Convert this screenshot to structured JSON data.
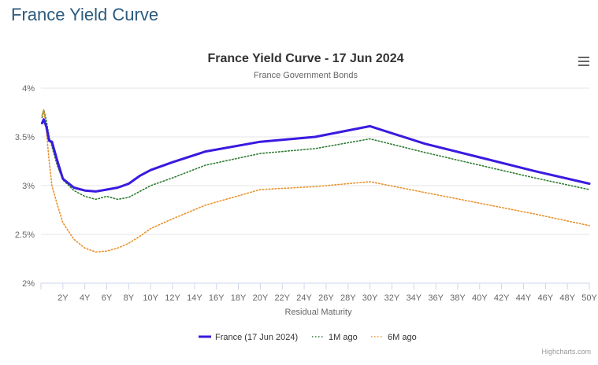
{
  "page": {
    "title": "France Yield Curve"
  },
  "menu": {
    "icon": "hamburger-menu-icon"
  },
  "credits": "Highcharts.com",
  "colors": {
    "france": "#3a1ae0",
    "m1": "#2e7d32",
    "m6": "#e8922b",
    "grid": "#e6e6e6",
    "axis": "#ccd6eb"
  },
  "chart_data": {
    "type": "line",
    "title": "France Yield Curve - 17 Jun 2024",
    "subtitle": "France Government Bonds",
    "xlabel": "Residual Maturity",
    "ylabel": "",
    "xlim": [
      0,
      50
    ],
    "ylim": [
      2,
      4
    ],
    "y_ticks": [
      {
        "value": 2,
        "label": "2%"
      },
      {
        "value": 2.5,
        "label": "2.5%"
      },
      {
        "value": 3,
        "label": "3%"
      },
      {
        "value": 3.5,
        "label": "3.5%"
      },
      {
        "value": 4,
        "label": "4%"
      }
    ],
    "x_ticks": [
      {
        "value": 2,
        "label": "2Y"
      },
      {
        "value": 4,
        "label": "4Y"
      },
      {
        "value": 6,
        "label": "6Y"
      },
      {
        "value": 8,
        "label": "8Y"
      },
      {
        "value": 10,
        "label": "10Y"
      },
      {
        "value": 12,
        "label": "12Y"
      },
      {
        "value": 14,
        "label": "14Y"
      },
      {
        "value": 16,
        "label": "16Y"
      },
      {
        "value": 18,
        "label": "18Y"
      },
      {
        "value": 20,
        "label": "20Y"
      },
      {
        "value": 22,
        "label": "22Y"
      },
      {
        "value": 24,
        "label": "24Y"
      },
      {
        "value": 26,
        "label": "26Y"
      },
      {
        "value": 28,
        "label": "28Y"
      },
      {
        "value": 30,
        "label": "30Y"
      },
      {
        "value": 32,
        "label": "32Y"
      },
      {
        "value": 34,
        "label": "34Y"
      },
      {
        "value": 36,
        "label": "36Y"
      },
      {
        "value": 38,
        "label": "38Y"
      },
      {
        "value": 40,
        "label": "40Y"
      },
      {
        "value": 42,
        "label": "42Y"
      },
      {
        "value": 44,
        "label": "44Y"
      },
      {
        "value": 46,
        "label": "46Y"
      },
      {
        "value": 48,
        "label": "48Y"
      },
      {
        "value": 50,
        "label": "50Y"
      }
    ],
    "legend_position": "bottom-center",
    "series": [
      {
        "name": "France (17 Jun 2024)",
        "style": "solid",
        "x": [
          0.1,
          0.25,
          0.5,
          0.75,
          1,
          1.5,
          2,
          3,
          4,
          5,
          6,
          7,
          8,
          9,
          10,
          12,
          15,
          20,
          25,
          30,
          35,
          40,
          45,
          50
        ],
        "y": [
          3.64,
          3.68,
          3.6,
          3.46,
          3.45,
          3.25,
          3.07,
          2.98,
          2.95,
          2.94,
          2.96,
          2.98,
          3.02,
          3.1,
          3.16,
          3.24,
          3.35,
          3.45,
          3.5,
          3.61,
          3.43,
          3.29,
          3.15,
          3.02
        ]
      },
      {
        "name": "1M ago",
        "style": "dotted",
        "x": [
          0.1,
          0.25,
          0.5,
          0.75,
          1,
          1.5,
          2,
          3,
          4,
          5,
          6,
          7,
          8,
          9,
          10,
          12,
          15,
          20,
          25,
          30,
          35,
          40,
          45,
          50
        ],
        "y": [
          3.7,
          3.78,
          3.66,
          3.5,
          3.4,
          3.2,
          3.06,
          2.95,
          2.89,
          2.86,
          2.89,
          2.86,
          2.88,
          2.94,
          3.0,
          3.08,
          3.21,
          3.33,
          3.38,
          3.48,
          3.34,
          3.21,
          3.08,
          2.96
        ]
      },
      {
        "name": "6M ago",
        "style": "dotted",
        "x": [
          0.1,
          0.25,
          0.5,
          0.75,
          1,
          1.5,
          2,
          3,
          4,
          5,
          6,
          7,
          8,
          9,
          10,
          12,
          15,
          20,
          25,
          30,
          35,
          40,
          45,
          50
        ],
        "y": [
          3.72,
          3.78,
          3.55,
          3.25,
          3.0,
          2.8,
          2.62,
          2.45,
          2.36,
          2.32,
          2.33,
          2.36,
          2.41,
          2.48,
          2.56,
          2.66,
          2.8,
          2.96,
          2.99,
          3.04,
          2.93,
          2.82,
          2.71,
          2.59
        ]
      }
    ]
  }
}
